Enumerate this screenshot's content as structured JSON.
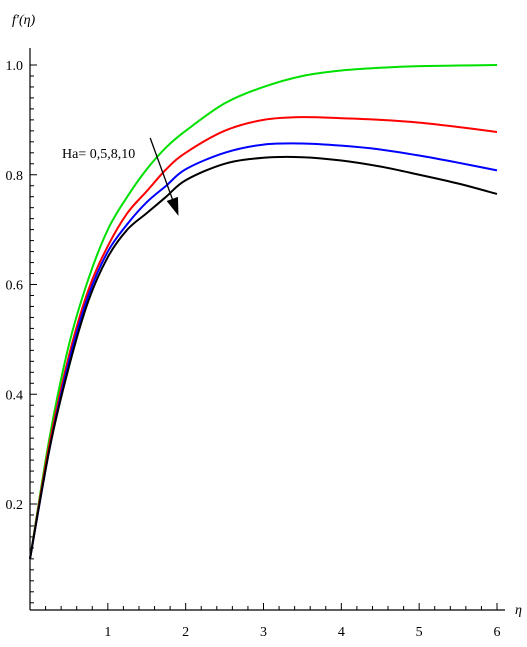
{
  "chart_data": {
    "type": "line",
    "title": "",
    "xlabel": "η",
    "ylabel": "f′(η)",
    "xlim": [
      0,
      6
    ],
    "ylim": [
      0,
      1.03
    ],
    "x_ticks": [
      1,
      2,
      3,
      4,
      5,
      6
    ],
    "y_ticks": [
      0.2,
      0.4,
      0.6,
      0.8,
      1.0
    ],
    "grid": false,
    "legend": "none",
    "annotation": {
      "text": "Ha= 0,5,8,10",
      "arrow_from": [
        1.75,
        0.845
      ],
      "arrow_to": [
        1.95,
        0.745
      ]
    },
    "x": [
      0,
      0.25,
      0.5,
      0.75,
      1,
      1.25,
      1.5,
      1.75,
      2,
      2.5,
      3,
      3.5,
      4,
      4.5,
      5,
      5.5,
      6
    ],
    "series": [
      {
        "color": "#00e000",
        "values": [
          0.1,
          0.32,
          0.49,
          0.61,
          0.7,
          0.76,
          0.81,
          0.85,
          0.88,
          0.93,
          0.96,
          0.98,
          0.99,
          0.995,
          0.998,
          0.999,
          1.0
        ]
      },
      {
        "color": "#ff0000",
        "values": [
          0.1,
          0.31,
          0.47,
          0.59,
          0.67,
          0.73,
          0.77,
          0.81,
          0.84,
          0.88,
          0.9,
          0.905,
          0.903,
          0.9,
          0.895,
          0.887,
          0.878
        ]
      },
      {
        "color": "#0000ff",
        "values": [
          0.1,
          0.3,
          0.46,
          0.58,
          0.66,
          0.71,
          0.75,
          0.78,
          0.81,
          0.84,
          0.855,
          0.857,
          0.853,
          0.846,
          0.835,
          0.822,
          0.808
        ]
      },
      {
        "color": "#000000",
        "values": [
          0.1,
          0.3,
          0.45,
          0.57,
          0.65,
          0.7,
          0.73,
          0.76,
          0.79,
          0.82,
          0.831,
          0.832,
          0.826,
          0.815,
          0.8,
          0.784,
          0.765
        ]
      }
    ]
  }
}
